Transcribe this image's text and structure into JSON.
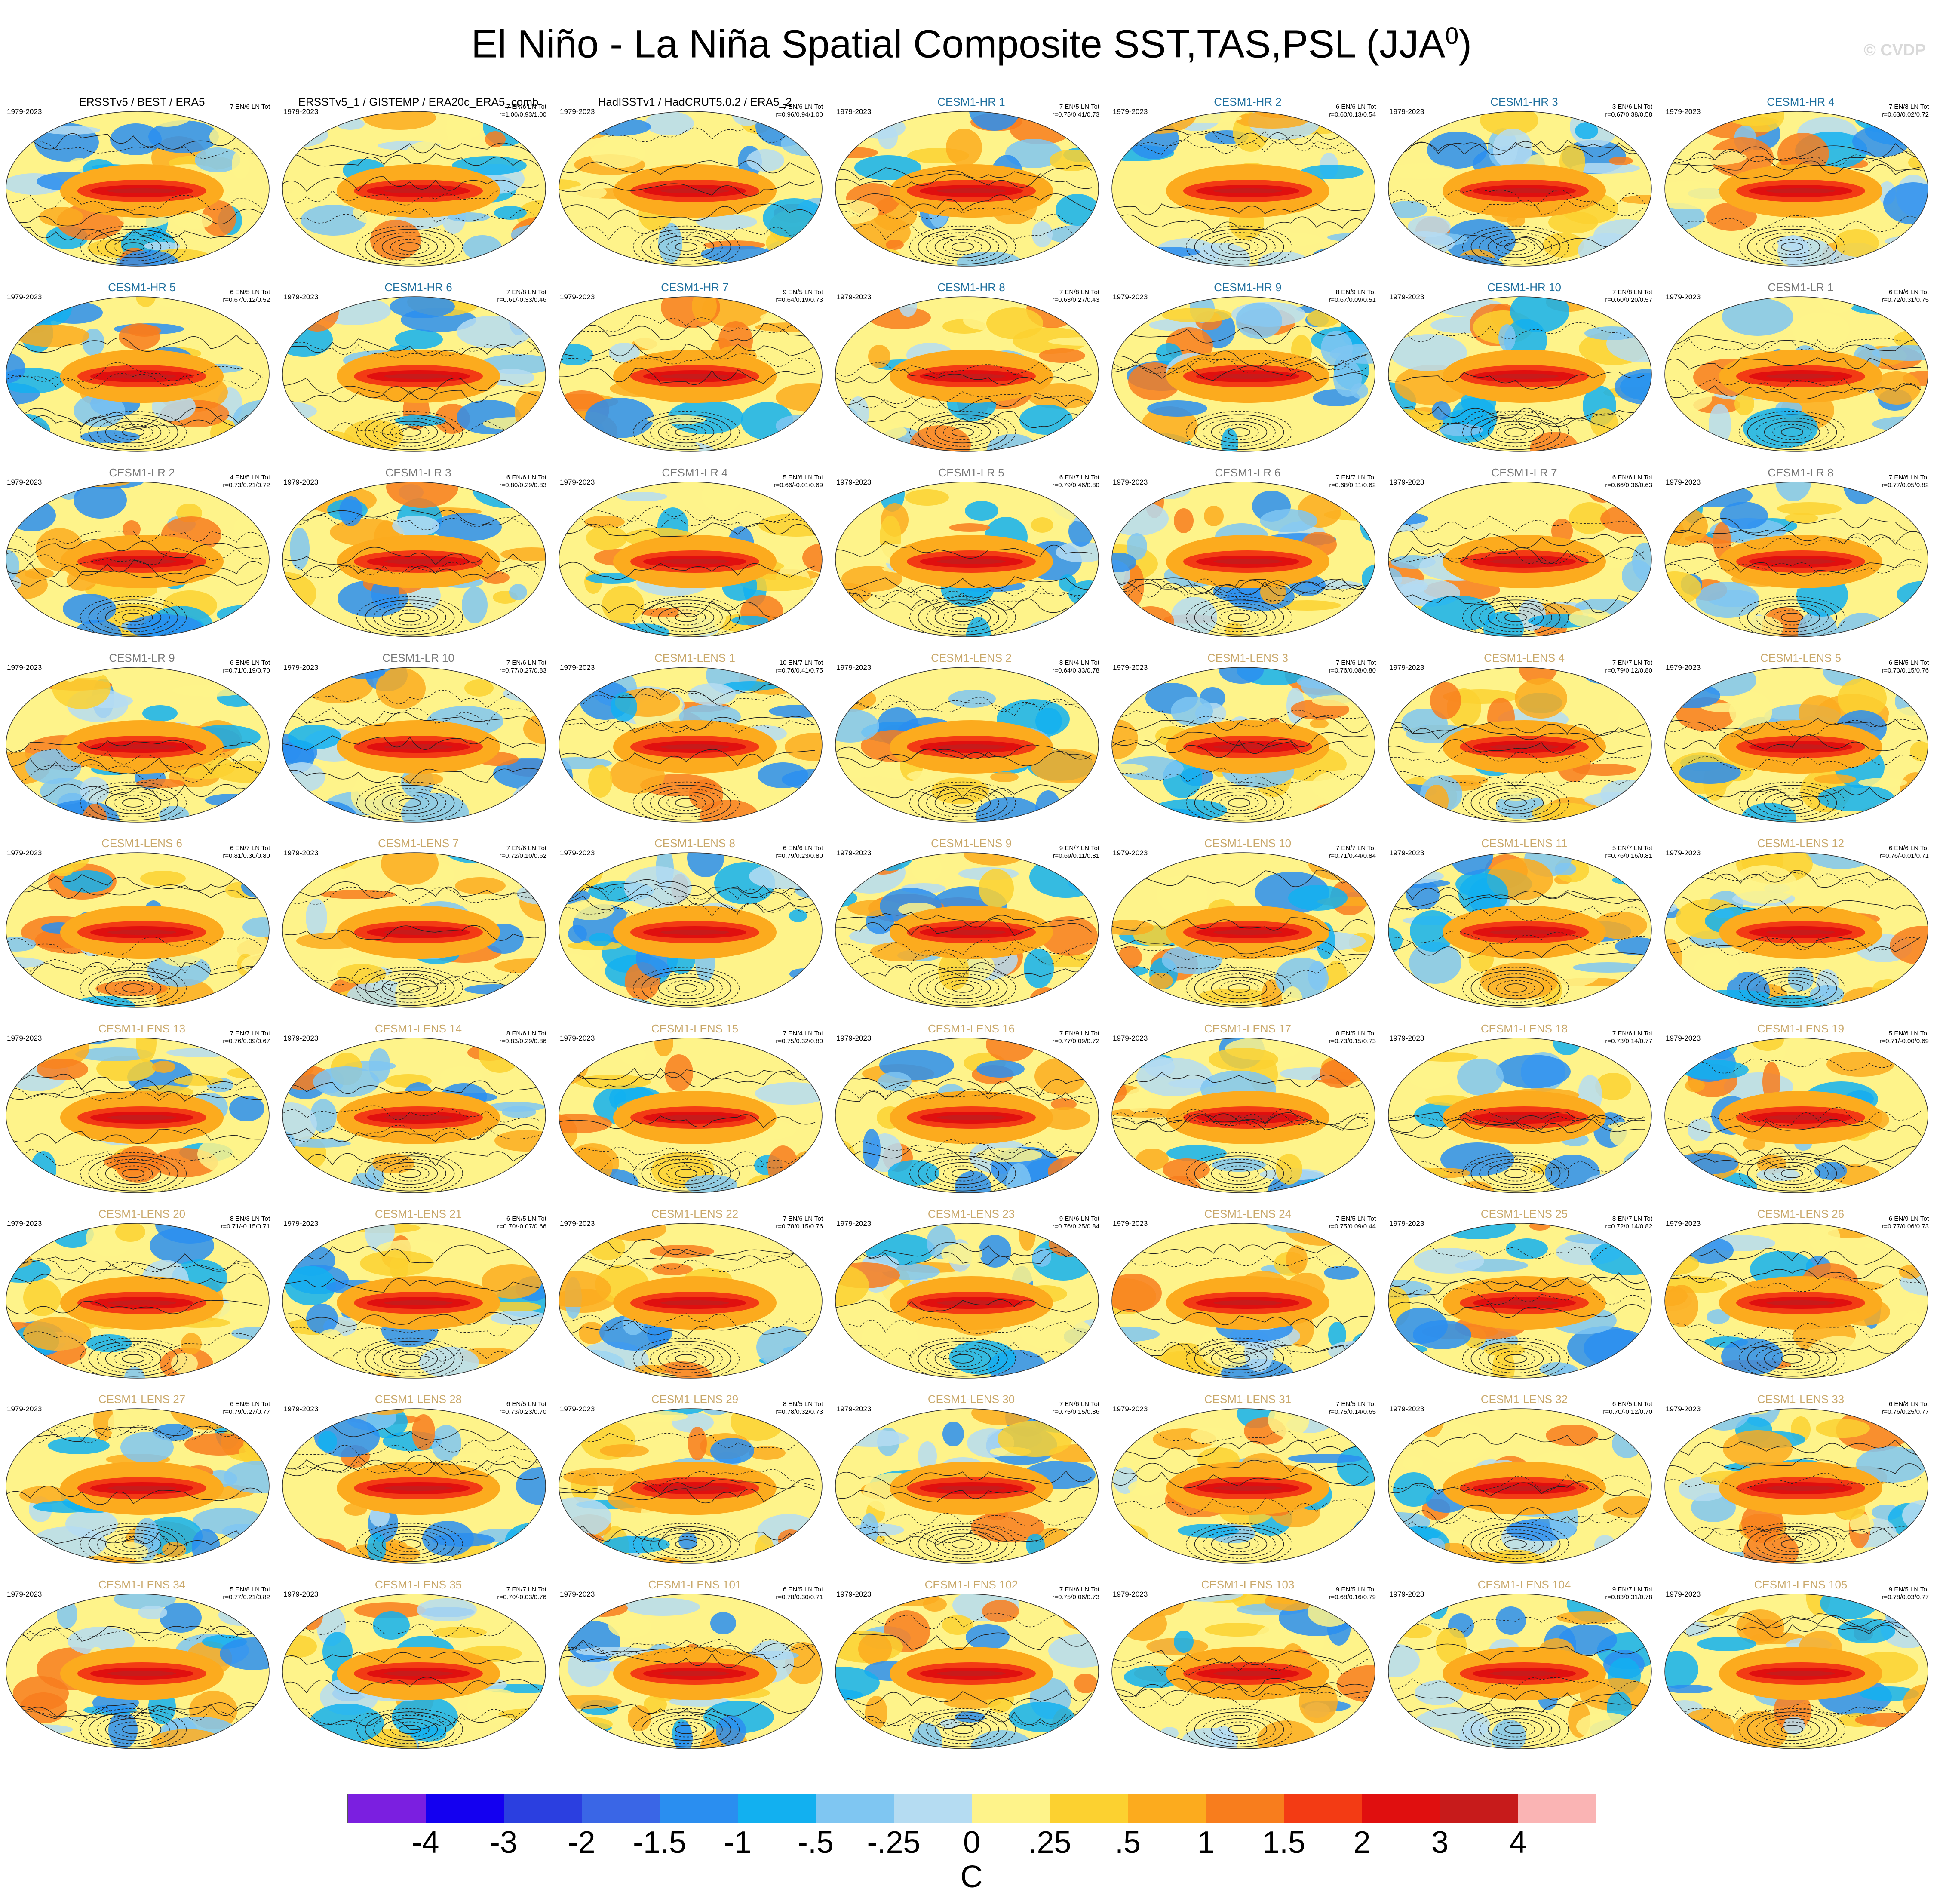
{
  "figure": {
    "title": "El Niño - La Niña Spatial Composite SST,TAS,PSL (JJA",
    "title_superscript": "0",
    "title_suffix": ")",
    "watermark": "© CVDP",
    "colorbar_unit": "C"
  },
  "colors": {
    "observation_label": "#000000",
    "hr_label": "#1e6f9e",
    "lr_label": "#777777",
    "lens_label": "#c9a86a"
  },
  "chart_data": {
    "type": "heatmap",
    "description_type": "grid of global composite maps (SST/TAS shaded, PSL contoured)",
    "colorbar": {
      "labels": [
        "-4",
        "-3",
        "-2",
        "-1.5",
        "-1",
        "-.5",
        "-.25",
        "0",
        ".25",
        ".5",
        "1",
        "1.5",
        "2",
        "3",
        "4"
      ],
      "colors": [
        "#7b1fe0",
        "#1400f0",
        "#2b3fe0",
        "#3a66e6",
        "#2a8ef0",
        "#12b0f0",
        "#7fc6f2",
        "#b5dcf2",
        "#fef38a",
        "#fcd130",
        "#fcab1e",
        "#f87d1d",
        "#f33b14",
        "#e00f0f",
        "#c71b1b",
        "#fab4b4"
      ]
    },
    "panels": [
      {
        "title": "ERSSTv5 / BEST / ERA5",
        "group": "obs",
        "years": "1979-2023",
        "counts": "7 EN/6 LN Tot",
        "stats": ""
      },
      {
        "title": "ERSSTv5_1 / GISTEMP / ERA20c_ERA5_comb",
        "group": "obs",
        "years": "1979-2023",
        "counts": "7 EN/6 LN Tot",
        "stats": "r=1.00/0.93/1.00"
      },
      {
        "title": "HadISSTv1 / HadCRUT5.0.2 / ERA5_2",
        "group": "obs",
        "years": "1979-2023",
        "counts": "7 EN/6 LN Tot",
        "stats": "r=0.96/0.94/1.00"
      },
      {
        "title": "CESM1-HR 1",
        "group": "hr",
        "years": "1979-2023",
        "counts": "7 EN/5 LN Tot",
        "stats": "r=0.75/0.41/0.73"
      },
      {
        "title": "CESM1-HR 2",
        "group": "hr",
        "years": "1979-2023",
        "counts": "6 EN/6 LN Tot",
        "stats": "r=0.60/0.13/0.54"
      },
      {
        "title": "CESM1-HR 3",
        "group": "hr",
        "years": "1979-2023",
        "counts": "3 EN/6 LN Tot",
        "stats": "r=0.67/0.38/0.58"
      },
      {
        "title": "CESM1-HR 4",
        "group": "hr",
        "years": "1979-2023",
        "counts": "7 EN/8 LN Tot",
        "stats": "r=0.63/0.02/0.72"
      },
      {
        "title": "CESM1-HR 5",
        "group": "hr",
        "years": "1979-2023",
        "counts": "6 EN/5 LN Tot",
        "stats": "r=0.67/0.12/0.52"
      },
      {
        "title": "CESM1-HR 6",
        "group": "hr",
        "years": "1979-2023",
        "counts": "7 EN/8 LN Tot",
        "stats": "r=0.61/-0.33/0.46"
      },
      {
        "title": "CESM1-HR 7",
        "group": "hr",
        "years": "1979-2023",
        "counts": "9 EN/5 LN Tot",
        "stats": "r=0.64/0.19/0.73"
      },
      {
        "title": "CESM1-HR 8",
        "group": "hr",
        "years": "1979-2023",
        "counts": "7 EN/8 LN Tot",
        "stats": "r=0.63/0.27/0.43"
      },
      {
        "title": "CESM1-HR 9",
        "group": "hr",
        "years": "1979-2023",
        "counts": "8 EN/9 LN Tot",
        "stats": "r=0.67/0.09/0.51"
      },
      {
        "title": "CESM1-HR 10",
        "group": "hr",
        "years": "1979-2023",
        "counts": "7 EN/8 LN Tot",
        "stats": "r=0.60/0.20/0.57"
      },
      {
        "title": "CESM1-LR 1",
        "group": "lr",
        "years": "1979-2023",
        "counts": "6 EN/6 LN Tot",
        "stats": "r=0.72/0.31/0.75"
      },
      {
        "title": "CESM1-LR 2",
        "group": "lr",
        "years": "1979-2023",
        "counts": "4 EN/5 LN Tot",
        "stats": "r=0.73/0.21/0.72"
      },
      {
        "title": "CESM1-LR 3",
        "group": "lr",
        "years": "1979-2023",
        "counts": "6 EN/6 LN Tot",
        "stats": "r=0.80/0.29/0.83"
      },
      {
        "title": "CESM1-LR 4",
        "group": "lr",
        "years": "1979-2023",
        "counts": "5 EN/6 LN Tot",
        "stats": "r=0.66/-0.01/0.69"
      },
      {
        "title": "CESM1-LR 5",
        "group": "lr",
        "years": "1979-2023",
        "counts": "6 EN/7 LN Tot",
        "stats": "r=0.79/0.46/0.80"
      },
      {
        "title": "CESM1-LR 6",
        "group": "lr",
        "years": "1979-2023",
        "counts": "7 EN/7 LN Tot",
        "stats": "r=0.68/0.11/0.62"
      },
      {
        "title": "CESM1-LR 7",
        "group": "lr",
        "years": "1979-2023",
        "counts": "6 EN/6 LN Tot",
        "stats": "r=0.66/0.36/0.63"
      },
      {
        "title": "CESM1-LR 8",
        "group": "lr",
        "years": "1979-2023",
        "counts": "7 EN/6 LN Tot",
        "stats": "r=0.77/0.05/0.82"
      },
      {
        "title": "CESM1-LR 9",
        "group": "lr",
        "years": "1979-2023",
        "counts": "6 EN/5 LN Tot",
        "stats": "r=0.71/0.19/0.70"
      },
      {
        "title": "CESM1-LR 10",
        "group": "lr",
        "years": "1979-2023",
        "counts": "7 EN/6 LN Tot",
        "stats": "r=0.77/0.27/0.83"
      },
      {
        "title": "CESM1-LENS 1",
        "group": "lens",
        "years": "1979-2023",
        "counts": "10 EN/7 LN Tot",
        "stats": "r=0.76/0.41/0.75"
      },
      {
        "title": "CESM1-LENS 2",
        "group": "lens",
        "years": "1979-2023",
        "counts": "8 EN/4 LN Tot",
        "stats": "r=0.64/0.33/0.78"
      },
      {
        "title": "CESM1-LENS 3",
        "group": "lens",
        "years": "1979-2023",
        "counts": "7 EN/6 LN Tot",
        "stats": "r=0.76/0.08/0.80"
      },
      {
        "title": "CESM1-LENS 4",
        "group": "lens",
        "years": "1979-2023",
        "counts": "7 EN/7 LN Tot",
        "stats": "r=0.79/0.12/0.80"
      },
      {
        "title": "CESM1-LENS 5",
        "group": "lens",
        "years": "1979-2023",
        "counts": "6 EN/5 LN Tot",
        "stats": "r=0.70/0.15/0.76"
      },
      {
        "title": "CESM1-LENS 6",
        "group": "lens",
        "years": "1979-2023",
        "counts": "6 EN/7 LN Tot",
        "stats": "r=0.81/0.30/0.80"
      },
      {
        "title": "CESM1-LENS 7",
        "group": "lens",
        "years": "1979-2023",
        "counts": "7 EN/6 LN Tot",
        "stats": "r=0.72/0.10/0.62"
      },
      {
        "title": "CESM1-LENS 8",
        "group": "lens",
        "years": "1979-2023",
        "counts": "6 EN/6 LN Tot",
        "stats": "r=0.79/0.23/0.80"
      },
      {
        "title": "CESM1-LENS 9",
        "group": "lens",
        "years": "1979-2023",
        "counts": "9 EN/7 LN Tot",
        "stats": "r=0.69/0.11/0.81"
      },
      {
        "title": "CESM1-LENS 10",
        "group": "lens",
        "years": "1979-2023",
        "counts": "7 EN/7 LN Tot",
        "stats": "r=0.71/0.44/0.84"
      },
      {
        "title": "CESM1-LENS 11",
        "group": "lens",
        "years": "1979-2023",
        "counts": "5 EN/7 LN Tot",
        "stats": "r=0.76/0.16/0.81"
      },
      {
        "title": "CESM1-LENS 12",
        "group": "lens",
        "years": "1979-2023",
        "counts": "6 EN/6 LN Tot",
        "stats": "r=0.76/-0.01/0.71"
      },
      {
        "title": "CESM1-LENS 13",
        "group": "lens",
        "years": "1979-2023",
        "counts": "7 EN/7 LN Tot",
        "stats": "r=0.76/0.09/0.67"
      },
      {
        "title": "CESM1-LENS 14",
        "group": "lens",
        "years": "1979-2023",
        "counts": "8 EN/6 LN Tot",
        "stats": "r=0.83/0.29/0.86"
      },
      {
        "title": "CESM1-LENS 15",
        "group": "lens",
        "years": "1979-2023",
        "counts": "7 EN/4 LN Tot",
        "stats": "r=0.75/0.32/0.80"
      },
      {
        "title": "CESM1-LENS 16",
        "group": "lens",
        "years": "1979-2023",
        "counts": "7 EN/9 LN Tot",
        "stats": "r=0.77/0.09/0.72"
      },
      {
        "title": "CESM1-LENS 17",
        "group": "lens",
        "years": "1979-2023",
        "counts": "8 EN/5 LN Tot",
        "stats": "r=0.73/0.15/0.73"
      },
      {
        "title": "CESM1-LENS 18",
        "group": "lens",
        "years": "1979-2023",
        "counts": "7 EN/6 LN Tot",
        "stats": "r=0.73/0.14/0.77"
      },
      {
        "title": "CESM1-LENS 19",
        "group": "lens",
        "years": "1979-2023",
        "counts": "5 EN/6 LN Tot",
        "stats": "r=0.71/-0.00/0.69"
      },
      {
        "title": "CESM1-LENS 20",
        "group": "lens",
        "years": "1979-2023",
        "counts": "8 EN/3 LN Tot",
        "stats": "r=0.71/-0.15/0.71"
      },
      {
        "title": "CESM1-LENS 21",
        "group": "lens",
        "years": "1979-2023",
        "counts": "6 EN/5 LN Tot",
        "stats": "r=0.70/-0.07/0.66"
      },
      {
        "title": "CESM1-LENS 22",
        "group": "lens",
        "years": "1979-2023",
        "counts": "7 EN/6 LN Tot",
        "stats": "r=0.78/0.15/0.76"
      },
      {
        "title": "CESM1-LENS 23",
        "group": "lens",
        "years": "1979-2023",
        "counts": "9 EN/6 LN Tot",
        "stats": "r=0.76/0.25/0.84"
      },
      {
        "title": "CESM1-LENS 24",
        "group": "lens",
        "years": "1979-2023",
        "counts": "7 EN/5 LN Tot",
        "stats": "r=0.75/0.09/0.44"
      },
      {
        "title": "CESM1-LENS 25",
        "group": "lens",
        "years": "1979-2023",
        "counts": "8 EN/7 LN Tot",
        "stats": "r=0.72/0.14/0.82"
      },
      {
        "title": "CESM1-LENS 26",
        "group": "lens",
        "years": "1979-2023",
        "counts": "6 EN/9 LN Tot",
        "stats": "r=0.77/0.06/0.73"
      },
      {
        "title": "CESM1-LENS 27",
        "group": "lens",
        "years": "1979-2023",
        "counts": "6 EN/5 LN Tot",
        "stats": "r=0.79/0.27/0.77"
      },
      {
        "title": "CESM1-LENS 28",
        "group": "lens",
        "years": "1979-2023",
        "counts": "6 EN/5 LN Tot",
        "stats": "r=0.73/0.23/0.70"
      },
      {
        "title": "CESM1-LENS 29",
        "group": "lens",
        "years": "1979-2023",
        "counts": "8 EN/5 LN Tot",
        "stats": "r=0.78/0.32/0.73"
      },
      {
        "title": "CESM1-LENS 30",
        "group": "lens",
        "years": "1979-2023",
        "counts": "7 EN/6 LN Tot",
        "stats": "r=0.75/0.15/0.86"
      },
      {
        "title": "CESM1-LENS 31",
        "group": "lens",
        "years": "1979-2023",
        "counts": "7 EN/5 LN Tot",
        "stats": "r=0.75/0.14/0.65"
      },
      {
        "title": "CESM1-LENS 32",
        "group": "lens",
        "years": "1979-2023",
        "counts": "6 EN/5 LN Tot",
        "stats": "r=0.70/-0.12/0.70"
      },
      {
        "title": "CESM1-LENS 33",
        "group": "lens",
        "years": "1979-2023",
        "counts": "6 EN/8 LN Tot",
        "stats": "r=0.76/0.25/0.77"
      },
      {
        "title": "CESM1-LENS 34",
        "group": "lens",
        "years": "1979-2023",
        "counts": "5 EN/8 LN Tot",
        "stats": "r=0.77/0.21/0.82"
      },
      {
        "title": "CESM1-LENS 35",
        "group": "lens",
        "years": "1979-2023",
        "counts": "7 EN/7 LN Tot",
        "stats": "r=0.70/-0.03/0.76"
      },
      {
        "title": "CESM1-LENS 101",
        "group": "lens",
        "years": "1979-2023",
        "counts": "6 EN/5 LN Tot",
        "stats": "r=0.78/0.30/0.71"
      },
      {
        "title": "CESM1-LENS 102",
        "group": "lens",
        "years": "1979-2023",
        "counts": "7 EN/6 LN Tot",
        "stats": "r=0.75/0.06/0.73"
      },
      {
        "title": "CESM1-LENS 103",
        "group": "lens",
        "years": "1979-2023",
        "counts": "9 EN/5 LN Tot",
        "stats": "r=0.68/0.16/0.79"
      },
      {
        "title": "CESM1-LENS 104",
        "group": "lens",
        "years": "1979-2023",
        "counts": "9 EN/7 LN Tot",
        "stats": "r=0.83/0.31/0.78"
      },
      {
        "title": "CESM1-LENS 105",
        "group": "lens",
        "years": "1979-2023",
        "counts": "9 EN/5 LN Tot",
        "stats": "r=0.78/0.03/0.77"
      }
    ]
  }
}
